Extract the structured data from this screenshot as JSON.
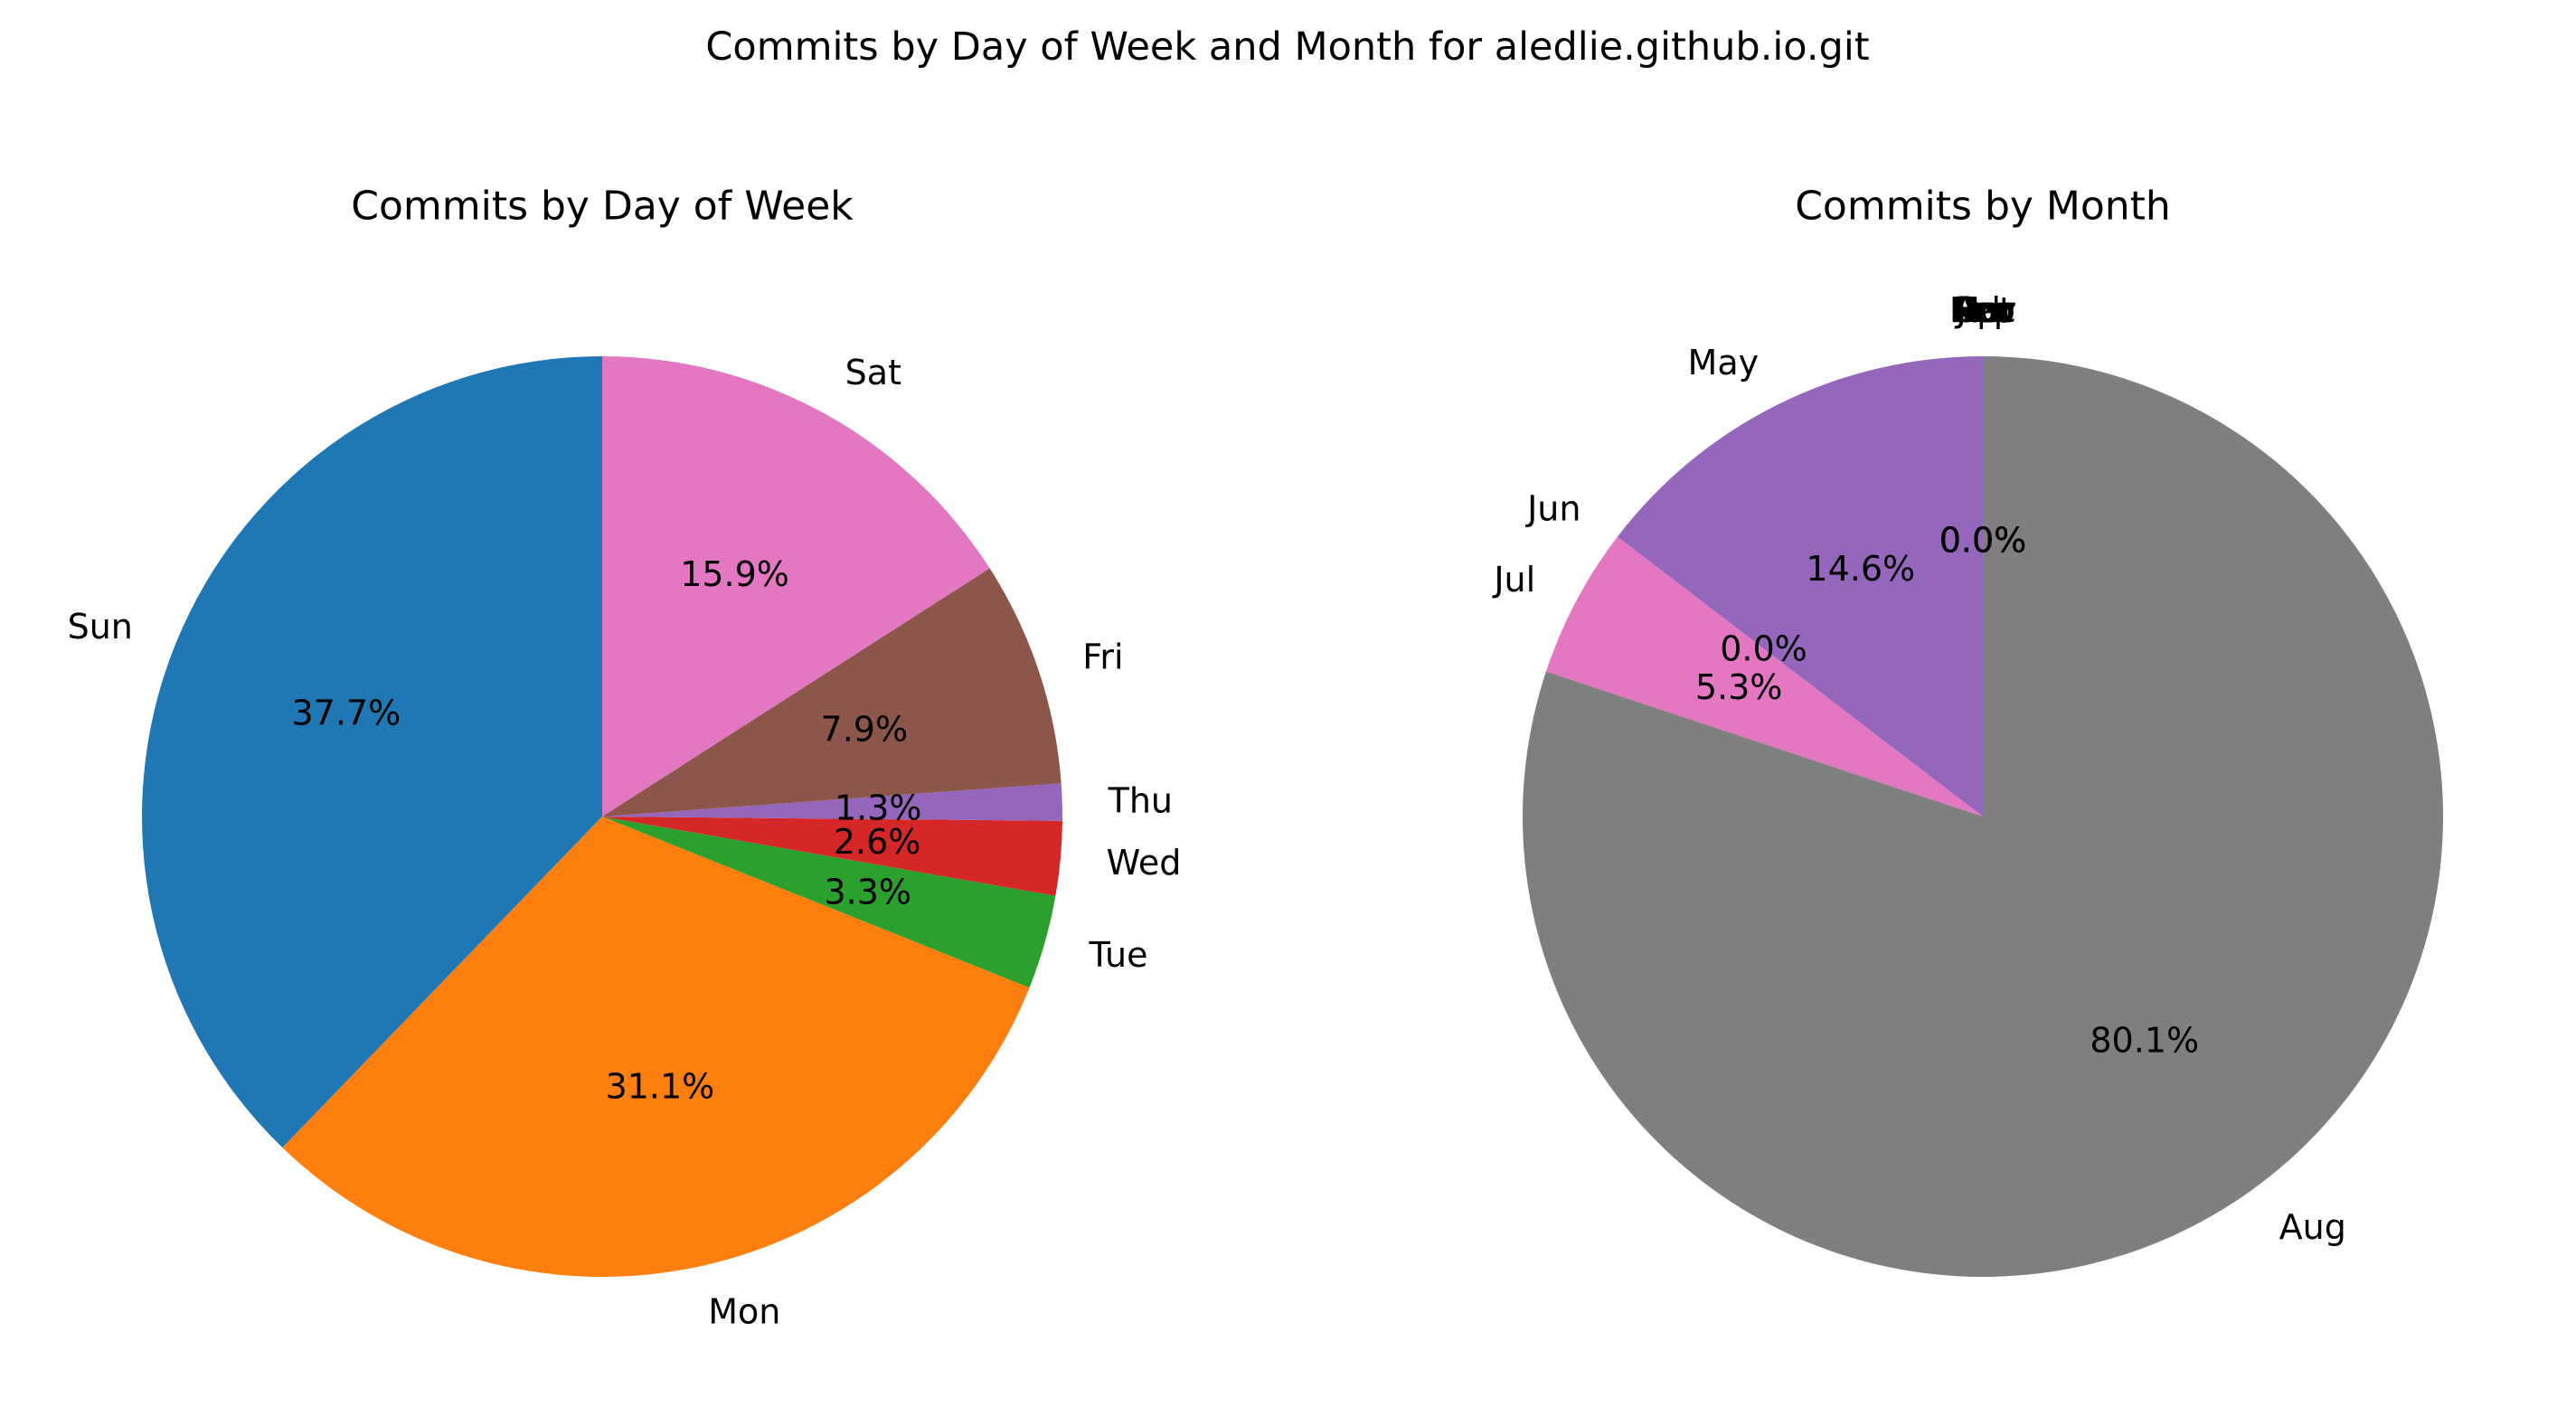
{
  "figure": {
    "suptitle": "Commits by Day of Week and Month for aledlie.github.io.git"
  },
  "chart_data": [
    {
      "type": "pie",
      "title": "Commits by Day of Week",
      "categories": [
        "Sun",
        "Mon",
        "Tue",
        "Wed",
        "Thu",
        "Fri",
        "Sat"
      ],
      "values": [
        37.7,
        31.1,
        3.3,
        2.6,
        1.3,
        7.9,
        15.9
      ],
      "percent_labels": [
        "37.7%",
        "31.1%",
        "3.3%",
        "2.6%",
        "1.3%",
        "7.9%",
        "15.9%"
      ],
      "colors": [
        "#1f77b4",
        "#ff7f0e",
        "#2ca02c",
        "#d62728",
        "#9467bd",
        "#8c564b",
        "#e377c2"
      ],
      "start_angle_deg": 90,
      "direction": "counterclockwise",
      "legend": "none"
    },
    {
      "type": "pie",
      "title": "Commits by Month",
      "categories": [
        "Jan",
        "Feb",
        "Mar",
        "Apr",
        "May",
        "Jun",
        "Jul",
        "Aug",
        "Sep",
        "Oct",
        "Nov",
        "Dec"
      ],
      "values": [
        0,
        0,
        0,
        0,
        14.6,
        0,
        5.3,
        80.1,
        0,
        0,
        0,
        0
      ],
      "percent_labels": [
        "0.0%",
        "0.0%",
        "0.0%",
        "0.0%",
        "14.6%",
        "0.0%",
        "5.3%",
        "80.1%",
        "0.0%",
        "0.0%",
        "0.0%",
        "0.0%"
      ],
      "colors": [
        "#1f77b4",
        "#ff7f0e",
        "#2ca02c",
        "#d62728",
        "#9467bd",
        "#8c564b",
        "#e377c2",
        "#7f7f7f",
        "#bcbd22",
        "#17becf",
        "#1f77b4",
        "#ff7f0e"
      ],
      "start_angle_deg": 90,
      "direction": "counterclockwise",
      "legend": "none"
    }
  ]
}
